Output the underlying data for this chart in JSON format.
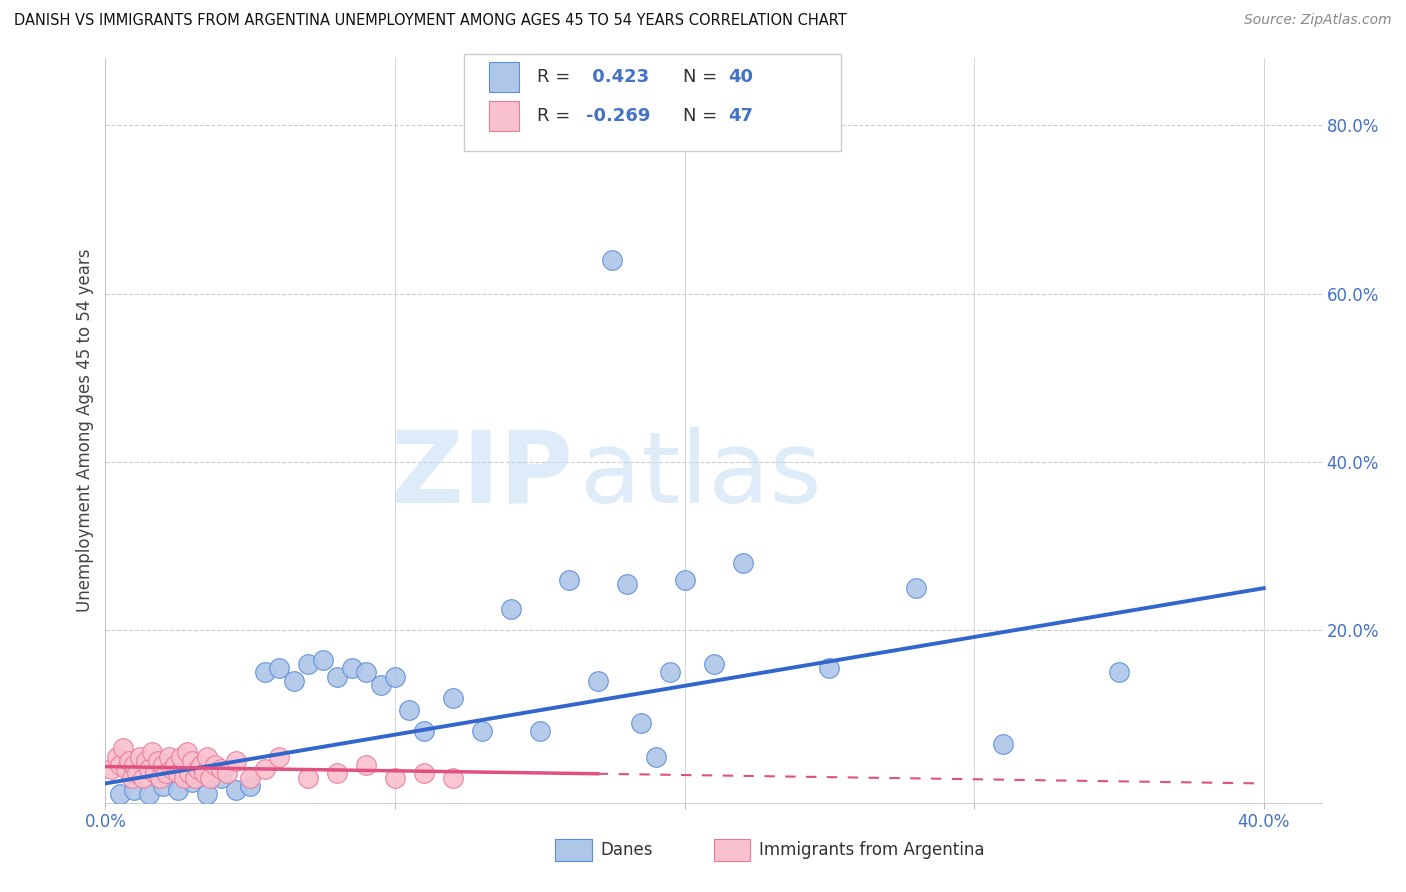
{
  "title": "DANISH VS IMMIGRANTS FROM ARGENTINA UNEMPLOYMENT AMONG AGES 45 TO 54 YEARS CORRELATION CHART",
  "source": "Source: ZipAtlas.com",
  "ylabel": "Unemployment Among Ages 45 to 54 years",
  "xlim": [
    0.0,
    0.42
  ],
  "ylim": [
    -0.005,
    0.88
  ],
  "yticks": [
    0.0,
    0.2,
    0.4,
    0.6,
    0.8
  ],
  "ytick_labels": [
    "",
    "20.0%",
    "40.0%",
    "60.0%",
    "80.0%"
  ],
  "xticks": [
    0.0,
    0.1,
    0.2,
    0.3,
    0.4
  ],
  "xtick_labels": [
    "0.0%",
    "",
    "",
    "",
    "40.0%"
  ],
  "danes_color": "#aec6e8",
  "danes_edge_color": "#5b8dd9",
  "danes_line_color": "#3366cc",
  "argentina_color": "#f9c0ce",
  "argentina_edge_color": "#e87a9a",
  "argentina_line_color": "#e05080",
  "danes_scatter_x": [
    0.005,
    0.01,
    0.015,
    0.02,
    0.025,
    0.03,
    0.035,
    0.04,
    0.045,
    0.05,
    0.055,
    0.06,
    0.065,
    0.07,
    0.075,
    0.08,
    0.085,
    0.09,
    0.095,
    0.1,
    0.105,
    0.11,
    0.12,
    0.13,
    0.14,
    0.15,
    0.16,
    0.17,
    0.175,
    0.18,
    0.185,
    0.19,
    0.195,
    0.2,
    0.21,
    0.22,
    0.25,
    0.28,
    0.31,
    0.35
  ],
  "danes_scatter_y": [
    0.005,
    0.01,
    0.005,
    0.015,
    0.01,
    0.02,
    0.005,
    0.025,
    0.01,
    0.015,
    0.15,
    0.155,
    0.14,
    0.16,
    0.165,
    0.145,
    0.155,
    0.15,
    0.135,
    0.145,
    0.105,
    0.08,
    0.12,
    0.08,
    0.225,
    0.08,
    0.26,
    0.14,
    0.64,
    0.255,
    0.09,
    0.05,
    0.15,
    0.26,
    0.16,
    0.28,
    0.155,
    0.25,
    0.065,
    0.15
  ],
  "argentina_scatter_x": [
    0.002,
    0.004,
    0.005,
    0.006,
    0.007,
    0.008,
    0.009,
    0.01,
    0.011,
    0.012,
    0.013,
    0.014,
    0.015,
    0.016,
    0.017,
    0.018,
    0.019,
    0.02,
    0.021,
    0.022,
    0.023,
    0.024,
    0.025,
    0.026,
    0.027,
    0.028,
    0.029,
    0.03,
    0.031,
    0.032,
    0.033,
    0.034,
    0.035,
    0.036,
    0.038,
    0.04,
    0.042,
    0.045,
    0.05,
    0.055,
    0.06,
    0.07,
    0.08,
    0.09,
    0.1,
    0.11,
    0.12
  ],
  "argentina_scatter_y": [
    0.035,
    0.05,
    0.04,
    0.06,
    0.035,
    0.045,
    0.025,
    0.04,
    0.03,
    0.05,
    0.025,
    0.045,
    0.035,
    0.055,
    0.03,
    0.045,
    0.025,
    0.04,
    0.03,
    0.05,
    0.035,
    0.04,
    0.03,
    0.05,
    0.025,
    0.055,
    0.03,
    0.045,
    0.025,
    0.035,
    0.04,
    0.03,
    0.05,
    0.025,
    0.04,
    0.035,
    0.03,
    0.045,
    0.025,
    0.035,
    0.05,
    0.025,
    0.03,
    0.04,
    0.025,
    0.03,
    0.025
  ],
  "danes_R": 0.423,
  "danes_N": 40,
  "argentina_R": -0.269,
  "argentina_N": 47,
  "watermark_zip": "ZIP",
  "watermark_atlas": "atlas",
  "legend_dane_label": "Danes",
  "legend_arg_label": "Immigrants from Argentina"
}
